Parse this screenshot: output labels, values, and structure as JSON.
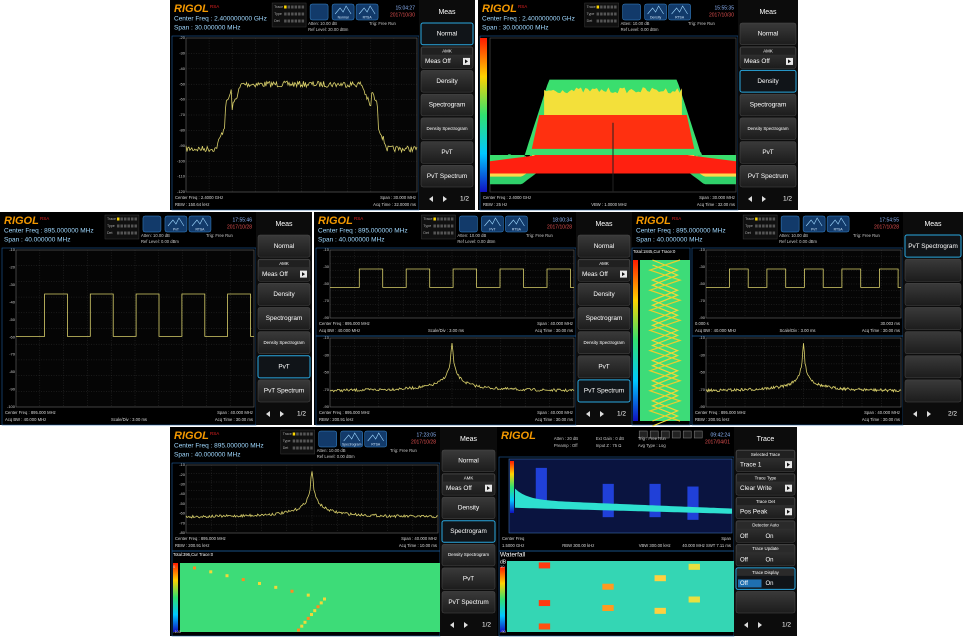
{
  "brand": "RIGOL",
  "brand_sub": "RSA",
  "panels": [
    {
      "center": "Center Freq : 2.400000000 GHz",
      "span": "Span :   30.000000 MHz",
      "trace_box": [
        "Trace",
        "Type",
        "Det"
      ],
      "icons": [
        "Normal",
        "RTSA"
      ],
      "status": [
        "Atten: 10.00 dB",
        "Ref Level: 20.00 dBm",
        "Trig: Free Run"
      ],
      "time": "15:04:27",
      "date": "2017/10/30",
      "plots": [
        {
          "type": "spectrum",
          "y_labels": [
            -20,
            -30,
            -40,
            -50,
            -60,
            -70,
            -80,
            -90,
            -100,
            -110,
            -120
          ],
          "footer": [
            [
              "Center Freq : 2.4000 GHz",
              "Span : 30.000 MHz"
            ],
            [
              "RBW : 150.64 kHz",
              "Acq Time : 32.0000 ms"
            ]
          ]
        }
      ],
      "menu": {
        "title": "Meas",
        "selected": 0,
        "page": "1/2",
        "items": [
          {
            "label": "Normal"
          },
          {
            "group": "AMK",
            "label": "Meas Off",
            "arrow": true
          },
          {
            "label": "Density"
          },
          {
            "label": "Spectrogram"
          },
          {
            "label": "Density Spectrogram"
          },
          {
            "label": "PvT"
          },
          {
            "label": "PvT Spectrum"
          }
        ]
      }
    },
    {
      "center": "Center Freq : 2.400000000 GHz",
      "span": "Span :   30.000000 MHz",
      "trace_box": [
        "Trace",
        "Type",
        "Det"
      ],
      "icons": [
        "Density",
        "RTSA"
      ],
      "status": [
        "Atten: 10.00 dB",
        "Ref Level: 0.00 dBm",
        "Trig: Free Run"
      ],
      "time": "15:55:35",
      "date": "2017/10/30",
      "plots": [
        {
          "type": "density",
          "footer": [
            [
              "Center Freq : 2.4000 GHz",
              "Span : 30.000 MHz"
            ],
            [
              "RBW : 25 Hz",
              "VBW : 1.0000 MHz",
              "Acq Time : 32.00 ms"
            ]
          ]
        }
      ],
      "menu": {
        "title": "Meas",
        "selected": 2,
        "page": "1/2",
        "items": [
          {
            "label": "Normal"
          },
          {
            "group": "AMK",
            "label": "Meas Off",
            "arrow": true
          },
          {
            "label": "Density"
          },
          {
            "label": "Spectrogram"
          },
          {
            "label": "Density Spectrogram"
          },
          {
            "label": "PvT"
          },
          {
            "label": "PvT Spectrum"
          }
        ]
      }
    },
    {
      "center": "Center Freq : 895.000000 MHz",
      "span": "Span :   40.000000 MHz",
      "trace_box": [
        "Trace",
        "Type",
        "Det"
      ],
      "icons": [
        "PvT",
        "RTSA"
      ],
      "status": [
        "Atten: 10.00 dB",
        "Ref Level: 0.00 dBm",
        "Trig: Free Run"
      ],
      "time": "17:55:46",
      "date": "2017/10/28",
      "plots": [
        {
          "type": "pvt",
          "y_labels": [
            -10,
            -20,
            -30,
            -40,
            -50,
            -60,
            -70,
            -80,
            -90,
            -100
          ],
          "footer": [
            [
              "Center Freq : 895.000 MHz",
              "Span : 40.000 MHz"
            ],
            [
              "Acq BW : 40.000 MHz",
              "Scale/Div : 3.00 ms",
              "Acq Time : 30.00 ms"
            ]
          ]
        }
      ],
      "menu": {
        "title": "Meas",
        "selected": 5,
        "page": "1/2",
        "items": [
          {
            "label": "Normal"
          },
          {
            "group": "AMK",
            "label": "Meas Off",
            "arrow": true
          },
          {
            "label": "Density"
          },
          {
            "label": "Spectrogram"
          },
          {
            "label": "Density Spectrogram"
          },
          {
            "label": "PvT"
          },
          {
            "label": "PvT Spectrum"
          }
        ]
      }
    },
    {
      "center": "Center Freq : 895.000000 MHz",
      "span": "Span :   40.000000 MHz",
      "trace_box": [
        "Trace",
        "Type",
        "Det"
      ],
      "icons": [
        "PvT",
        "RTSA"
      ],
      "status": [
        "Atten: 10.00 dB",
        "Ref Level: 0.00 dBm",
        "Trig: Free Run"
      ],
      "time": "18:00:34",
      "date": "2017/10/28",
      "plots": [
        {
          "type": "pvt",
          "y_labels": [
            -10,
            -30,
            -50,
            -70,
            -90
          ],
          "footer": [
            [
              "Center Freq : 895.000 MHz",
              "Span : 40.000 MHz"
            ],
            [
              "Acq BW : 40.000 MHz",
              "Scale/Div : 3.00 ms",
              "Acq Time : 30.00 ms"
            ]
          ]
        },
        {
          "type": "peak",
          "y_labels": [
            -10,
            -30,
            -50,
            -70,
            -90
          ],
          "footer": [
            [
              "Center Freq : 895.000 MHz",
              "Span : 40.000 MHz"
            ],
            [
              "RBW : 200.91 kHz",
              "Acq Time : 30.00 ms"
            ]
          ]
        }
      ],
      "menu": {
        "title": "Meas",
        "selected": 6,
        "page": "1/2",
        "items": [
          {
            "label": "Normal"
          },
          {
            "group": "AMK",
            "label": "Meas Off",
            "arrow": true
          },
          {
            "label": "Density"
          },
          {
            "label": "Spectrogram"
          },
          {
            "label": "Density Spectrogram"
          },
          {
            "label": "PvT"
          },
          {
            "label": "PvT Spectrum"
          }
        ]
      }
    },
    {
      "center": "Center Freq : 895.000000 MHz",
      "span": "Span :   40.000000 MHz",
      "trace_box": [
        "Trace",
        "Type",
        "Det"
      ],
      "icons": [
        "PvT",
        "RTSA"
      ],
      "status": [
        "Atten: 10.00 dB",
        "Ref Level: 0.00 dBm",
        "Trig: Free Run"
      ],
      "time": "17:54:55",
      "date": "2017/10/28",
      "plots": [
        {
          "type": "pvt",
          "y_labels": [
            -10,
            -30,
            -50,
            -70,
            -90
          ],
          "footer": [
            [
              "0.000 s",
              "30.003 ms"
            ],
            [
              "Acq BW : 40.000 MHz",
              "Scale/Div : 3.00 ms",
              "Acq Time : 30.00 ms"
            ]
          ]
        },
        {
          "type": "peak",
          "y_labels": [
            -10,
            -30,
            -50,
            -70,
            -90
          ],
          "footer": [
            [
              "Center Freq : 895.000 MHz",
              "Span : 40.000 MHz"
            ],
            [
              "RBW : 200.91 kHz",
              "Acq Time : 30.00 ms"
            ]
          ]
        },
        {
          "type": "spectrogram",
          "label": "Total:1845,Cur Trace:0"
        }
      ],
      "menu": {
        "title": "Meas",
        "selected": 0,
        "page": "2/2",
        "items": [
          {
            "label": "PvT Spectrogram"
          }
        ]
      }
    },
    {
      "center": "Center Freq : 895.000000 MHz",
      "span": "Span :   40.000000 MHz",
      "trace_box": [
        "Trace",
        "Type",
        "Det"
      ],
      "icons": [
        "Spectrogram",
        "RTSA"
      ],
      "status": [
        "Atten: 10.00 dB",
        "Ref Level: 0.00 dBm",
        "Trig: Free Run"
      ],
      "time": "17:23:05",
      "date": "2017/10/28",
      "plots": [
        {
          "type": "peak",
          "y_labels": [
            -10,
            -20,
            -30,
            -40,
            -50,
            -60,
            -70,
            -80
          ],
          "footer": [
            [
              "Center Freq : 895.000 MHz",
              "Span : 40.000 MHz"
            ],
            [
              "RBW : 200.91 kHz",
              "Acq Time : 10.00 ms"
            ]
          ]
        },
        {
          "type": "spectrogram",
          "label": "Total:396,Cur Trace:0",
          "y_labels": [
            0,
            -100
          ]
        }
      ],
      "menu": {
        "title": "Meas",
        "selected": 3,
        "page": "1/2",
        "items": [
          {
            "label": "Normal"
          },
          {
            "group": "AMK",
            "label": "Meas Off",
            "arrow": true
          },
          {
            "label": "Density"
          },
          {
            "label": "Spectrogram"
          },
          {
            "label": "Density Spectrogram"
          },
          {
            "label": "PvT"
          },
          {
            "label": "PvT Spectrum"
          }
        ]
      }
    },
    {
      "plain_brand": true,
      "status": [
        "Atten : 20 dB",
        "Preamp : Off",
        "Ext Gain : 0 dB",
        "Input Z : 75 Ω",
        "Trig : Free Run",
        "Avg Type : Log"
      ],
      "time": "09:42:24",
      "date": "2017/04/01",
      "plots": [
        {
          "type": "rtsa",
          "footer": [
            [
              "Center Freq",
              "Span"
            ],
            [
              "1.5000 GHz",
              "RBW 300.00 kHz",
              "VBW 300.00 kHz",
              "40.000 MHz  SWT 7.11 ms"
            ]
          ]
        },
        {
          "type": "waterfall",
          "label": "Waterfall",
          "unit": "dB",
          "y_labels": [
            10,
            -90
          ]
        }
      ],
      "menu": {
        "title": "Trace",
        "selected": 5,
        "page": "1/2",
        "items": [
          {
            "group": "Selected Trace",
            "label": "Trace 1",
            "arrow": true
          },
          {
            "group": "Trace Type",
            "label": "Clear Write",
            "arrow": true
          },
          {
            "group": "Trace Det",
            "label": "Pos Peak",
            "arrow": true
          },
          {
            "group": "Detector Auto",
            "options": [
              "Off",
              "On"
            ]
          },
          {
            "group": "Trace Update",
            "options": [
              "Off",
              "On"
            ]
          },
          {
            "group": "Trace Display",
            "options": [
              "Off",
              "On"
            ]
          }
        ]
      }
    }
  ]
}
